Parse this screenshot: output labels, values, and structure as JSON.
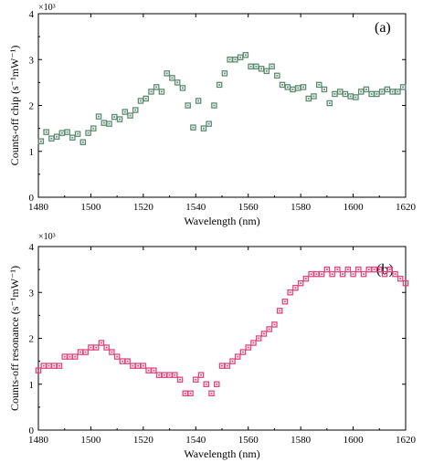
{
  "chart_data": [
    {
      "type": "scatter",
      "panel_label": "(a)",
      "xlabel": "Wavelength (nm)",
      "ylabel": "Counts-off chip (s⁻¹mW⁻¹)",
      "y_multiplier": "×10³",
      "xlim": [
        1480,
        1620
      ],
      "ylim": [
        0,
        4
      ],
      "x_ticks": [
        1480,
        1500,
        1520,
        1540,
        1560,
        1580,
        1600,
        1620
      ],
      "y_ticks": [
        0,
        1,
        2,
        3,
        4
      ],
      "marker_color": "#5b8a6f",
      "x": [
        1481,
        1483,
        1485,
        1487,
        1489,
        1491,
        1493,
        1495,
        1497,
        1499,
        1501,
        1503,
        1505,
        1507,
        1509,
        1511,
        1513,
        1515,
        1517,
        1519,
        1521,
        1523,
        1525,
        1527,
        1529,
        1531,
        1533,
        1535,
        1537,
        1539,
        1541,
        1543,
        1545,
        1547,
        1549,
        1551,
        1553,
        1555,
        1557,
        1559,
        1561,
        1563,
        1565,
        1567,
        1569,
        1571,
        1573,
        1575,
        1577,
        1579,
        1581,
        1583,
        1585,
        1587,
        1589,
        1591,
        1593,
        1595,
        1597,
        1599,
        1601,
        1603,
        1605,
        1607,
        1609,
        1611,
        1613,
        1615,
        1617,
        1619
      ],
      "y": [
        1.22,
        1.42,
        1.28,
        1.32,
        1.4,
        1.42,
        1.3,
        1.38,
        1.2,
        1.4,
        1.5,
        1.76,
        1.62,
        1.6,
        1.75,
        1.7,
        1.86,
        1.78,
        1.9,
        2.1,
        2.15,
        2.3,
        2.4,
        2.3,
        2.7,
        2.6,
        2.5,
        2.38,
        2.0,
        1.52,
        2.1,
        1.5,
        1.6,
        2.0,
        2.45,
        2.7,
        3.0,
        3.0,
        3.05,
        3.1,
        2.85,
        2.85,
        2.8,
        2.75,
        2.85,
        2.65,
        2.45,
        2.4,
        2.35,
        2.38,
        2.4,
        2.15,
        2.2,
        2.45,
        2.35,
        2.05,
        2.25,
        2.3,
        2.25,
        2.2,
        2.18,
        2.3,
        2.35,
        2.25,
        2.25,
        2.3,
        2.35,
        2.3,
        2.3,
        2.4
      ]
    },
    {
      "type": "scatter",
      "panel_label": "(b)",
      "xlabel": "Wavelength (nm)",
      "ylabel": "Counts-off resonance (s⁻¹mW⁻¹)",
      "y_multiplier": "×10³",
      "xlim": [
        1480,
        1620
      ],
      "ylim": [
        0,
        4
      ],
      "x_ticks": [
        1480,
        1500,
        1520,
        1540,
        1560,
        1580,
        1600,
        1620
      ],
      "y_ticks": [
        0,
        1,
        2,
        3,
        4
      ],
      "marker_color": "#e0457b",
      "x": [
        1480,
        1482,
        1484,
        1486,
        1488,
        1490,
        1492,
        1494,
        1496,
        1498,
        1500,
        1502,
        1504,
        1506,
        1508,
        1510,
        1512,
        1514,
        1516,
        1518,
        1520,
        1522,
        1524,
        1526,
        1528,
        1530,
        1532,
        1534,
        1536,
        1538,
        1540,
        1542,
        1544,
        1546,
        1548,
        1550,
        1552,
        1554,
        1556,
        1558,
        1560,
        1562,
        1564,
        1566,
        1568,
        1570,
        1572,
        1574,
        1576,
        1578,
        1580,
        1582,
        1584,
        1586,
        1588,
        1590,
        1592,
        1594,
        1596,
        1598,
        1600,
        1602,
        1604,
        1606,
        1608,
        1610,
        1612,
        1614,
        1616,
        1618,
        1620
      ],
      "y": [
        1.3,
        1.4,
        1.4,
        1.4,
        1.4,
        1.6,
        1.6,
        1.6,
        1.7,
        1.7,
        1.8,
        1.8,
        1.9,
        1.8,
        1.7,
        1.6,
        1.5,
        1.5,
        1.4,
        1.4,
        1.4,
        1.3,
        1.3,
        1.2,
        1.2,
        1.2,
        1.2,
        1.1,
        0.8,
        0.8,
        1.1,
        1.2,
        1.0,
        0.8,
        1.0,
        1.4,
        1.4,
        1.5,
        1.6,
        1.7,
        1.8,
        1.9,
        2.0,
        2.1,
        2.2,
        2.3,
        2.6,
        2.8,
        3.0,
        3.1,
        3.2,
        3.3,
        3.4,
        3.4,
        3.4,
        3.5,
        3.4,
        3.5,
        3.4,
        3.5,
        3.4,
        3.5,
        3.4,
        3.5,
        3.5,
        3.5,
        3.4,
        3.5,
        3.4,
        3.3,
        3.2
      ]
    }
  ]
}
